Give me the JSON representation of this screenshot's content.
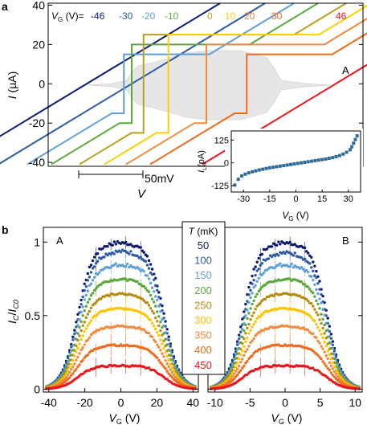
{
  "figure": {
    "panel_a_letter": "a",
    "panel_b_letter": "b"
  },
  "chart_data": [
    {
      "type": "line",
      "panel": "a-main",
      "ylabel_main": "I",
      "ylabel_unit": " (µA)",
      "ylim": [
        -42,
        41
      ],
      "yticks": [
        -40,
        -20,
        0,
        20,
        40
      ],
      "legend_prefix_sym": "V",
      "legend_prefix_sub": "G",
      "legend_prefix_rest": " (V)=",
      "gate_voltages": [
        "-46",
        "-30",
        "-20",
        "-10",
        "0",
        "10",
        "20",
        "30",
        "46"
      ],
      "colors": [
        "#0b1a6e",
        "#2c5aa5",
        "#5f9fd8",
        "#5aa83a",
        "#b8a020",
        "#ffd000",
        "#f08a3c",
        "#f06a1a",
        "#e8141e"
      ],
      "critical_currents_uA": [
        0,
        0,
        15,
        20,
        25,
        25,
        20,
        15,
        0
      ],
      "switching_pattern_label": "A",
      "scalebar_label": "50mV",
      "xlabel_main": "V",
      "shaded_region": "grey envelope of critical current"
    },
    {
      "type": "scatter",
      "panel": "a-inset",
      "xlabel_sym": "V",
      "xlabel_sub": "G",
      "xlabel_rest": " (V)",
      "ylabel_sym": "I",
      "ylabel_sub": "L",
      "ylabel_rest": "(pA)",
      "xticks": [
        "-30",
        "-15",
        "0",
        "15",
        "30"
      ],
      "yticks": [
        "-125",
        "0",
        "125"
      ],
      "xlim": [
        -37,
        37
      ],
      "ylim": [
        -160,
        175
      ],
      "x": [
        -35,
        -33,
        -31,
        -29,
        -27,
        -25,
        -23,
        -21,
        -19,
        -17,
        -15,
        -13,
        -11,
        -9,
        -7,
        -5,
        -3,
        -1,
        1,
        3,
        5,
        7,
        9,
        11,
        13,
        15,
        17,
        19,
        21,
        23,
        25,
        27,
        29,
        31,
        32,
        33,
        34,
        35
      ],
      "y": [
        -122,
        -90,
        -72,
        -62,
        -55,
        -49,
        -44,
        -39,
        -35,
        -31,
        -27,
        -24,
        -21,
        -18,
        -15,
        -12,
        -9,
        -6,
        -3,
        0,
        3,
        6,
        9,
        12,
        15,
        18,
        21,
        25,
        29,
        34,
        40,
        48,
        58,
        72,
        88,
        108,
        128,
        148
      ],
      "marker_color": "#2f6b98"
    },
    {
      "type": "scatter",
      "panel": "b-left",
      "label": "A",
      "xlabel_sym": "V",
      "xlabel_sub": "G",
      "xlabel_rest": " (V)",
      "ylabel_I": "I",
      "ylabel_C": "C",
      "ylabel_slash": "/",
      "ylabel_I0": "I",
      "ylabel_C0": "C0",
      "xlim": [
        -43,
        43
      ],
      "ylim": [
        -0.02,
        1.1
      ],
      "xticks": [
        "-40",
        "-20",
        "0",
        "20",
        "40"
      ],
      "yticks": [
        "0",
        "0.5",
        "1"
      ],
      "plateau_edge_V": 24,
      "plateau_levels": [
        1.0,
        0.94,
        0.85,
        0.75,
        0.65,
        0.55,
        0.43,
        0.3,
        0.16
      ]
    },
    {
      "type": "scatter",
      "panel": "b-right",
      "label": "B",
      "xlabel_sym": "V",
      "xlabel_sub": "G",
      "xlabel_rest": " (V)",
      "xlim": [
        -11,
        11
      ],
      "ylim": [
        -0.02,
        1.1
      ],
      "xticks": [
        "-10",
        "-5",
        "0",
        "5",
        "10"
      ],
      "plateau_edge_V": 6,
      "plateau_levels": [
        1.0,
        0.93,
        0.85,
        0.75,
        0.65,
        0.55,
        0.43,
        0.3,
        0.16
      ]
    },
    {
      "type": "table",
      "panel": "b-legend",
      "header_sym": "T",
      "header_rest": " (mK)",
      "temperatures": [
        "50",
        "100",
        "150",
        "200",
        "250",
        "300",
        "350",
        "400",
        "450"
      ],
      "colors": [
        "#0b1a6e",
        "#2c5aa5",
        "#5f9fd8",
        "#5aa83a",
        "#b88a10",
        "#ffc400",
        "#f08a3c",
        "#f06a1a",
        "#e8141e"
      ]
    }
  ]
}
